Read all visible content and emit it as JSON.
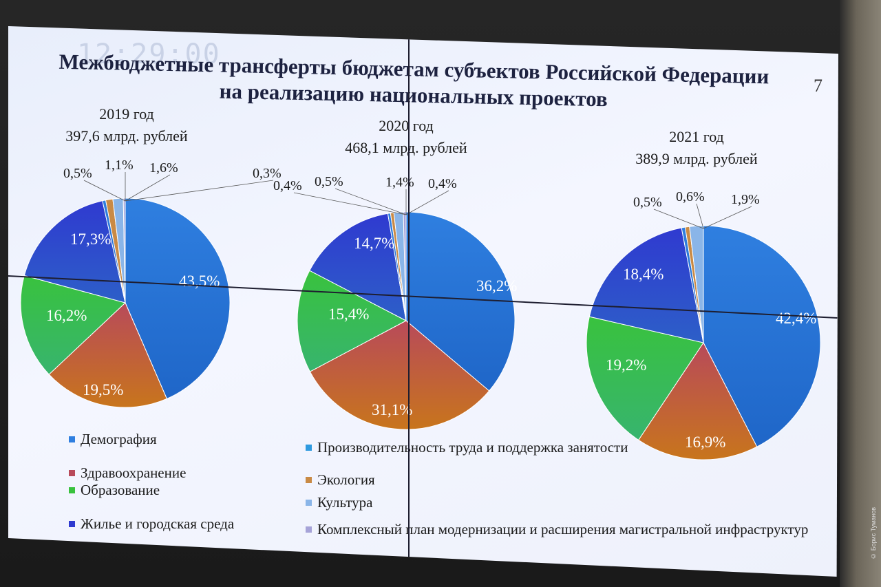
{
  "slide": {
    "clock": "12:29:00",
    "title_line1": "Межбюджетные трансферты бюджетам субъектов Российской Федерации",
    "title_line2": "на реализацию национальных проектов",
    "page_number": "7"
  },
  "colors": {
    "Демография": "#2f7fe0",
    "Производительность труда и поддержка занятости": "#2f7fe0",
    "Здравоохранение": "#b84a5a",
    "Образование": "#39c23e",
    "Жилье и городская среда": "#2f3ad0",
    "Экология": "#c98a45",
    "Культура": "#8ab5e8",
    "Комплексный план модернизации и расширения магистральной инфраструктуры": "#a6a3d8",
    "orange": "#c8751c"
  },
  "chart_data": [
    {
      "type": "pie",
      "title": "2019 год",
      "subtitle": "397,6 млрд. рублей",
      "slices": [
        {
          "label": "43,5%",
          "value": 43.5,
          "color": "#2f7fe0"
        },
        {
          "label": "19,5%",
          "value": 19.5,
          "color": "#b84a5a"
        },
        {
          "label": "16,2%",
          "value": 16.2,
          "color": "#39c23e"
        },
        {
          "label": "17,3%",
          "value": 17.3,
          "color": "#2f3ad0"
        },
        {
          "label": "0,5%",
          "value": 0.5,
          "color": "#2f7fe0"
        },
        {
          "label": "1,1%",
          "value": 1.1,
          "color": "#c98a45"
        },
        {
          "label": "1,6%",
          "value": 1.6,
          "color": "#8ab5e8"
        },
        {
          "label": "0,3%",
          "value": 0.3,
          "color": "#a6a3d8"
        }
      ]
    },
    {
      "type": "pie",
      "title": "2020 год",
      "subtitle": "468,1 млрд. рублей",
      "slices": [
        {
          "label": "36,2%",
          "value": 36.2,
          "color": "#2f7fe0"
        },
        {
          "label": "31,1%",
          "value": 31.1,
          "color": "#b84a5a"
        },
        {
          "label": "15,4%",
          "value": 15.4,
          "color": "#39c23e"
        },
        {
          "label": "14,7%",
          "value": 14.7,
          "color": "#2f3ad0"
        },
        {
          "label": "0,4%",
          "value": 0.4,
          "color": "#2f7fe0"
        },
        {
          "label": "0,5%",
          "value": 0.5,
          "color": "#c98a45"
        },
        {
          "label": "1,4%",
          "value": 1.4,
          "color": "#8ab5e8"
        },
        {
          "label": "0,4%",
          "value": 0.4,
          "color": "#a6a3d8"
        }
      ]
    },
    {
      "type": "pie",
      "title": "2021 год",
      "subtitle": "389,9 млрд. рублей",
      "slices": [
        {
          "label": "42,4%",
          "value": 42.4,
          "color": "#2f7fe0"
        },
        {
          "label": "16,9%",
          "value": 16.9,
          "color": "#b84a5a"
        },
        {
          "label": "19,2%",
          "value": 19.2,
          "color": "#39c23e"
        },
        {
          "label": "18,4%",
          "value": 18.4,
          "color": "#2f3ad0"
        },
        {
          "label": "0,5%",
          "value": 0.5,
          "color": "#2f7fe0"
        },
        {
          "label": "0,6%",
          "value": 0.6,
          "color": "#c98a45"
        },
        {
          "label": "1,9%",
          "value": 1.9,
          "color": "#8ab5e8"
        }
      ]
    }
  ],
  "legend": {
    "left": [
      {
        "label": "Демография",
        "color": "#2f7fe0"
      },
      {
        "label": "Здравоохранение",
        "color": "#b84a5a"
      },
      {
        "label": "Образование",
        "color": "#39c23e"
      },
      {
        "label": "Жилье и городская среда",
        "color": "#2f3ad0"
      }
    ],
    "right": [
      {
        "label": "Производительность  труда и поддержка занятости",
        "color": "#2f9ae0"
      },
      {
        "label": "Экология",
        "color": "#c98a45"
      },
      {
        "label": "Культура",
        "color": "#8ab5e8"
      },
      {
        "label": "Комплексный план модернизации и расширения магистральной инфраструктур",
        "color": "#a6a3d8"
      }
    ]
  },
  "credit": "© Борис Туманов"
}
